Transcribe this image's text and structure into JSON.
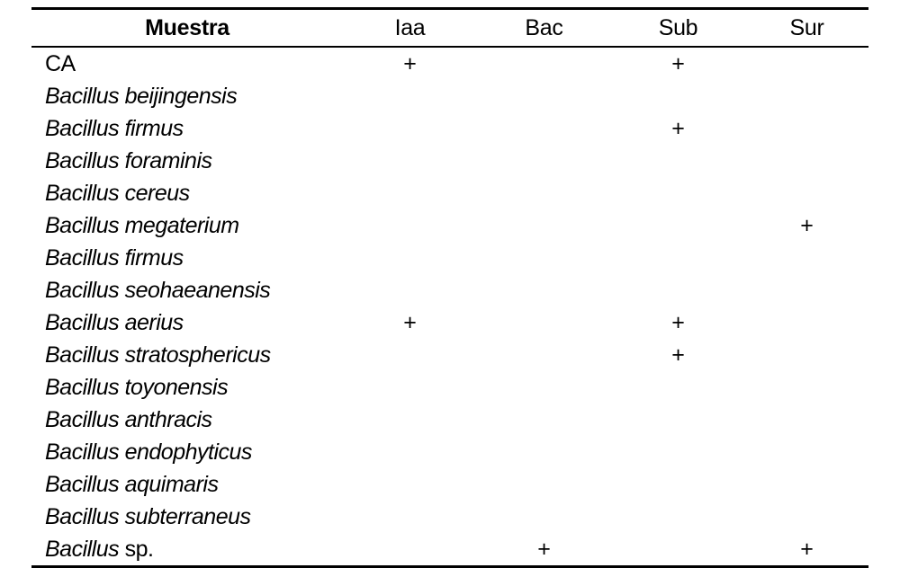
{
  "table": {
    "columns": [
      {
        "key": "muestra",
        "label": "Muestra"
      },
      {
        "key": "iaa",
        "label": "Iaa"
      },
      {
        "key": "bac",
        "label": "Bac"
      },
      {
        "key": "sub",
        "label": "Sub"
      },
      {
        "key": "sur",
        "label": "Sur"
      }
    ],
    "positive_symbol": "+",
    "rows": [
      {
        "muestra_italic": "",
        "muestra_roman": "CA",
        "iaa": "+",
        "bac": "",
        "sub": "+",
        "sur": ""
      },
      {
        "muestra_italic": "Bacillus beijingensis",
        "muestra_roman": "",
        "iaa": "",
        "bac": "",
        "sub": "",
        "sur": ""
      },
      {
        "muestra_italic": "Bacillus firmus",
        "muestra_roman": "",
        "iaa": "",
        "bac": "",
        "sub": "+",
        "sur": ""
      },
      {
        "muestra_italic": "Bacillus foraminis",
        "muestra_roman": "",
        "iaa": "",
        "bac": "",
        "sub": "",
        "sur": ""
      },
      {
        "muestra_italic": "Bacillus cereus",
        "muestra_roman": "",
        "iaa": "",
        "bac": "",
        "sub": "",
        "sur": ""
      },
      {
        "muestra_italic": "Bacillus megaterium",
        "muestra_roman": "",
        "iaa": "",
        "bac": "",
        "sub": "",
        "sur": "+"
      },
      {
        "muestra_italic": "Bacillus firmus",
        "muestra_roman": "",
        "iaa": "",
        "bac": "",
        "sub": "",
        "sur": ""
      },
      {
        "muestra_italic": "Bacillus seohaeanensis",
        "muestra_roman": "",
        "iaa": "",
        "bac": "",
        "sub": "",
        "sur": ""
      },
      {
        "muestra_italic": "Bacillus aerius",
        "muestra_roman": "",
        "iaa": "+",
        "bac": "",
        "sub": "+",
        "sur": ""
      },
      {
        "muestra_italic": "Bacillus stratosphericus",
        "muestra_roman": "",
        "iaa": "",
        "bac": "",
        "sub": "",
        "sur": ""
      },
      {
        "muestra_italic": "Bacillus toyonensis",
        "muestra_roman": "",
        "iaa": "",
        "bac": "",
        "sub": "",
        "sur": ""
      },
      {
        "muestra_italic": "Bacillus anthracis",
        "muestra_roman": "",
        "iaa": "",
        "bac": "",
        "sub": "",
        "sur": ""
      },
      {
        "muestra_italic": "Bacillus endophyticus",
        "muestra_roman": "",
        "iaa": "",
        "bac": "",
        "sub": "",
        "sur": ""
      },
      {
        "muestra_italic": "Bacillus aquimaris",
        "muestra_roman": "",
        "iaa": "",
        "bac": "",
        "sub": "",
        "sur": ""
      },
      {
        "muestra_italic": "Bacillus subterraneus",
        "muestra_roman": "",
        "iaa": "",
        "bac": "",
        "sub": "",
        "sur": ""
      },
      {
        "muestra_italic": "Bacillus",
        "muestra_roman": " sp.",
        "iaa": "",
        "bac": "+",
        "sub": "",
        "sur": "+"
      }
    ]
  }
}
